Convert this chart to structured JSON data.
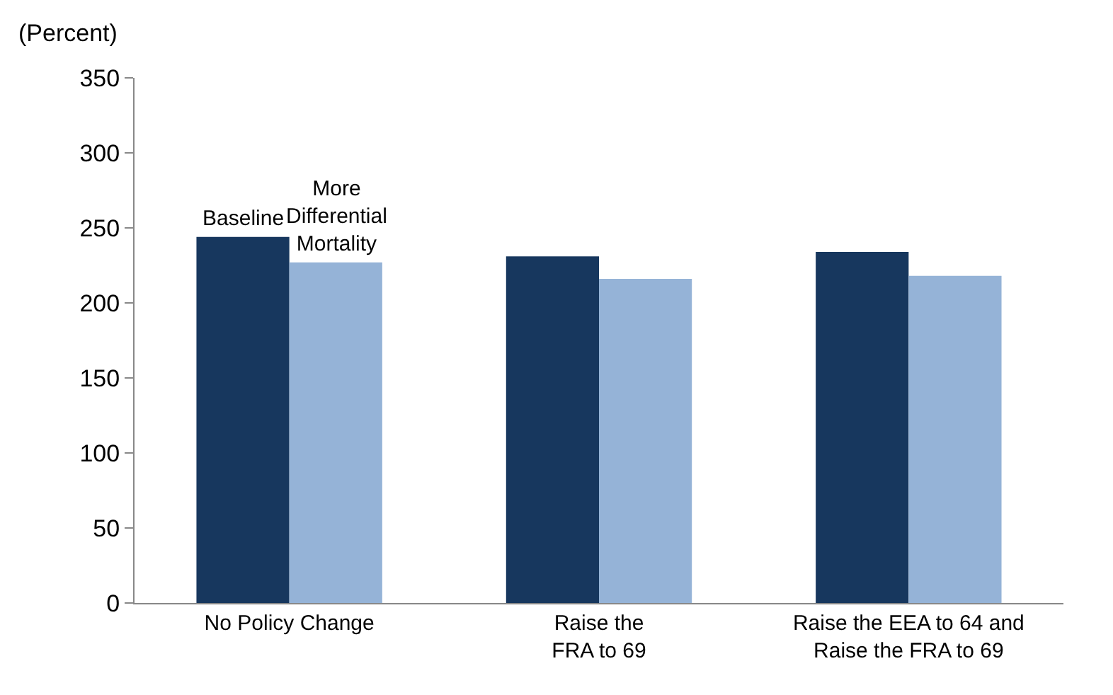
{
  "chart_data": {
    "type": "bar",
    "ylabel": "(Percent)",
    "categories": [
      "No Policy Change",
      "Raise the\nFRA to 69",
      "Raise the EEA to 64 and\nRaise the FRA to 69"
    ],
    "series": [
      {
        "name": "Baseline",
        "color": "#17375e",
        "values": [
          244,
          231,
          234
        ]
      },
      {
        "name": "More\nDifferential\nMortality",
        "color": "#95b3d7",
        "values": [
          227,
          216,
          218
        ]
      }
    ],
    "ylim": [
      0,
      350
    ],
    "yticks": [
      0,
      50,
      100,
      150,
      200,
      250,
      300,
      350
    ],
    "legend": false
  }
}
